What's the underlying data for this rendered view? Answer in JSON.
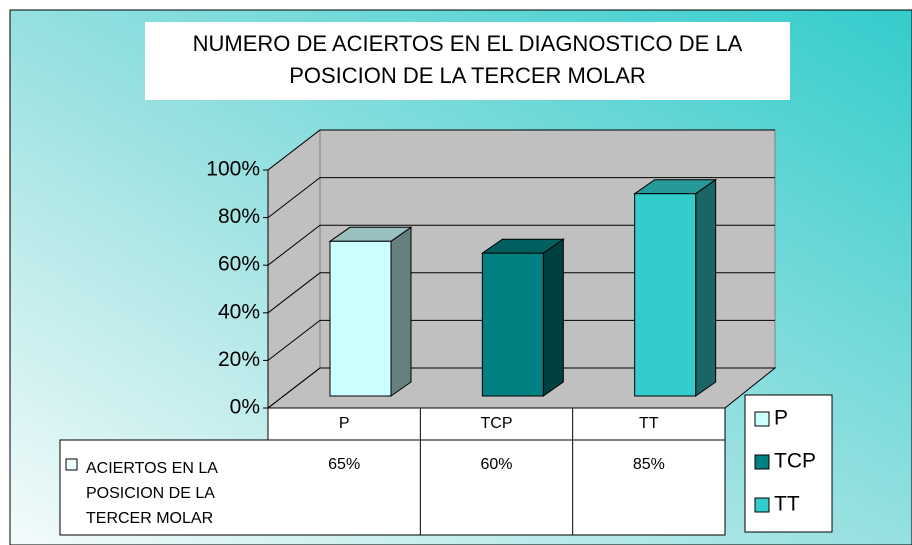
{
  "chart_data": {
    "type": "bar3d",
    "title": "NUMERO DE ACIERTOS EN EL DIAGNOSTICO DE LA POSICION DE LA TERCER MOLAR",
    "categories": [
      "P",
      "TCP",
      "TT"
    ],
    "series": [
      {
        "name": "ACIERTOS EN LA POSICION DE LA TERCER MOLAR",
        "values": [
          65,
          60,
          85
        ],
        "value_labels": [
          "65%",
          "60%",
          "85%"
        ]
      }
    ],
    "colors": [
      "#ccffff",
      "#008080",
      "#33cccc"
    ],
    "ylim": [
      0,
      100
    ],
    "yticks": [
      {
        "value": 0,
        "label": "0%"
      },
      {
        "value": 20,
        "label": "20%"
      },
      {
        "value": 40,
        "label": "40%"
      },
      {
        "value": 60,
        "label": "60%"
      },
      {
        "value": 80,
        "label": "80%"
      },
      {
        "value": 100,
        "label": "100%"
      }
    ],
    "grid": true,
    "legend": "right"
  }
}
